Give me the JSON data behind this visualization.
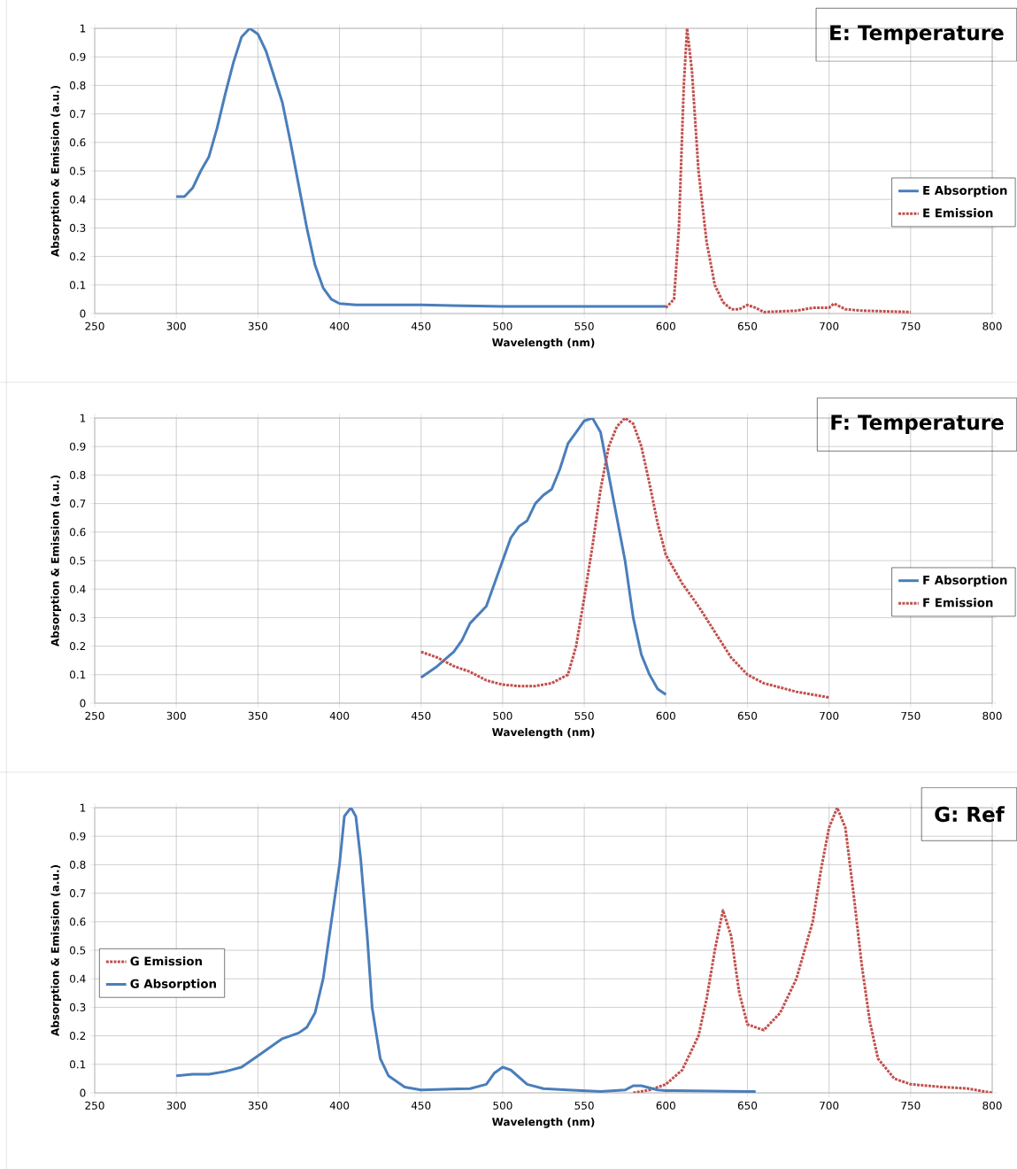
{
  "chart_data": [
    {
      "type": "line",
      "title": "E: Temperature",
      "xlabel": "Wavelength (nm)",
      "ylabel": "Absorption & Emission (a.u.)",
      "xlim": [
        250,
        800
      ],
      "xticks": [
        250,
        300,
        350,
        400,
        450,
        500,
        550,
        600,
        650,
        700,
        750,
        800
      ],
      "ylim": [
        0,
        1
      ],
      "yticks": [
        0,
        0.1,
        0.2,
        0.3,
        0.4,
        0.5,
        0.6,
        0.7,
        0.8,
        0.9,
        1
      ],
      "grid": true,
      "legend": "right",
      "series": [
        {
          "name": "E Absorption",
          "color": "#4a7ebb",
          "line_style": "solid",
          "x": [
            300,
            305,
            310,
            315,
            320,
            325,
            330,
            335,
            340,
            345,
            350,
            355,
            360,
            365,
            370,
            375,
            380,
            385,
            390,
            395,
            400,
            410,
            450,
            500,
            550,
            580,
            600
          ],
          "values": [
            0.41,
            0.41,
            0.44,
            0.5,
            0.55,
            0.65,
            0.77,
            0.88,
            0.97,
            1.0,
            0.98,
            0.92,
            0.83,
            0.74,
            0.6,
            0.45,
            0.3,
            0.17,
            0.09,
            0.05,
            0.035,
            0.03,
            0.03,
            0.025,
            0.025,
            0.025,
            0.025
          ]
        },
        {
          "name": "E Emission",
          "color": "#c0504d",
          "line_style": "dotted",
          "x": [
            600,
            605,
            608,
            611,
            613,
            616,
            620,
            625,
            630,
            635,
            640,
            645,
            650,
            655,
            660,
            680,
            690,
            700,
            703,
            710,
            720,
            750
          ],
          "values": [
            0.02,
            0.05,
            0.3,
            0.8,
            1.0,
            0.85,
            0.5,
            0.25,
            0.1,
            0.04,
            0.015,
            0.015,
            0.03,
            0.02,
            0.005,
            0.01,
            0.02,
            0.02,
            0.035,
            0.015,
            0.01,
            0.005
          ]
        }
      ]
    },
    {
      "type": "line",
      "title": "F: Temperature",
      "xlabel": "Wavelength (nm)",
      "ylabel": "Absorption & Emission (a.u.)",
      "xlim": [
        250,
        800
      ],
      "xticks": [
        250,
        300,
        350,
        400,
        450,
        500,
        550,
        600,
        650,
        700,
        750,
        800
      ],
      "ylim": [
        0,
        1
      ],
      "yticks": [
        0,
        0.1,
        0.2,
        0.3,
        0.4,
        0.5,
        0.6,
        0.7,
        0.8,
        0.9,
        1
      ],
      "grid": true,
      "legend": "right",
      "series": [
        {
          "name": "F Absorption",
          "color": "#4a7ebb",
          "line_style": "solid",
          "x": [
            450,
            460,
            470,
            475,
            480,
            485,
            490,
            495,
            500,
            505,
            510,
            515,
            520,
            525,
            530,
            535,
            540,
            545,
            550,
            555,
            560,
            565,
            570,
            575,
            580,
            585,
            590,
            595,
            600
          ],
          "values": [
            0.09,
            0.13,
            0.18,
            0.22,
            0.28,
            0.31,
            0.34,
            0.42,
            0.5,
            0.58,
            0.62,
            0.64,
            0.7,
            0.73,
            0.75,
            0.82,
            0.91,
            0.95,
            0.99,
            1.0,
            0.95,
            0.8,
            0.65,
            0.5,
            0.3,
            0.17,
            0.1,
            0.05,
            0.03
          ]
        },
        {
          "name": "F Emission",
          "color": "#c0504d",
          "line_style": "dotted",
          "x": [
            450,
            460,
            470,
            480,
            490,
            500,
            510,
            520,
            530,
            540,
            545,
            550,
            555,
            560,
            565,
            570,
            575,
            580,
            585,
            590,
            595,
            600,
            610,
            620,
            630,
            640,
            650,
            660,
            680,
            700
          ],
          "values": [
            0.18,
            0.16,
            0.13,
            0.11,
            0.08,
            0.065,
            0.06,
            0.06,
            0.07,
            0.1,
            0.2,
            0.37,
            0.55,
            0.75,
            0.9,
            0.97,
            1.0,
            0.98,
            0.9,
            0.77,
            0.63,
            0.52,
            0.42,
            0.34,
            0.25,
            0.16,
            0.1,
            0.07,
            0.04,
            0.02
          ]
        }
      ]
    },
    {
      "type": "line",
      "title": "G: Ref",
      "xlabel": "Wavelength (nm)",
      "ylabel": "Absorption & Emission (a.u.)",
      "xlim": [
        250,
        800
      ],
      "xticks": [
        250,
        300,
        350,
        400,
        450,
        500,
        550,
        600,
        650,
        700,
        750,
        800
      ],
      "ylim": [
        0,
        1
      ],
      "yticks": [
        0,
        0.1,
        0.2,
        0.3,
        0.4,
        0.5,
        0.6,
        0.7,
        0.8,
        0.9,
        1
      ],
      "grid": true,
      "legend": "left",
      "series": [
        {
          "name": "G Emission",
          "color": "#c0504d",
          "line_style": "dotted",
          "x": [
            580,
            590,
            600,
            610,
            620,
            625,
            630,
            635,
            640,
            645,
            650,
            660,
            670,
            680,
            690,
            695,
            700,
            705,
            710,
            715,
            720,
            725,
            730,
            740,
            750,
            770,
            785,
            800
          ],
          "values": [
            0.0,
            0.01,
            0.03,
            0.08,
            0.2,
            0.33,
            0.5,
            0.64,
            0.55,
            0.35,
            0.24,
            0.22,
            0.28,
            0.4,
            0.6,
            0.78,
            0.93,
            1.0,
            0.93,
            0.7,
            0.45,
            0.25,
            0.12,
            0.05,
            0.03,
            0.02,
            0.015,
            0.0
          ]
        },
        {
          "name": "G Absorption",
          "color": "#4a7ebb",
          "line_style": "solid",
          "x": [
            300,
            310,
            320,
            330,
            340,
            350,
            360,
            365,
            375,
            380,
            385,
            390,
            395,
            400,
            403,
            407,
            410,
            413,
            417,
            420,
            425,
            430,
            440,
            450,
            480,
            490,
            495,
            500,
            505,
            515,
            525,
            540,
            560,
            575,
            580,
            585,
            595,
            600,
            650,
            655
          ],
          "values": [
            0.06,
            0.065,
            0.065,
            0.075,
            0.09,
            0.13,
            0.17,
            0.19,
            0.21,
            0.23,
            0.28,
            0.4,
            0.6,
            0.8,
            0.97,
            1.0,
            0.97,
            0.82,
            0.55,
            0.3,
            0.12,
            0.06,
            0.02,
            0.01,
            0.015,
            0.03,
            0.07,
            0.09,
            0.08,
            0.03,
            0.015,
            0.01,
            0.005,
            0.01,
            0.025,
            0.025,
            0.01,
            0.008,
            0.005,
            0.005
          ]
        }
      ]
    }
  ]
}
